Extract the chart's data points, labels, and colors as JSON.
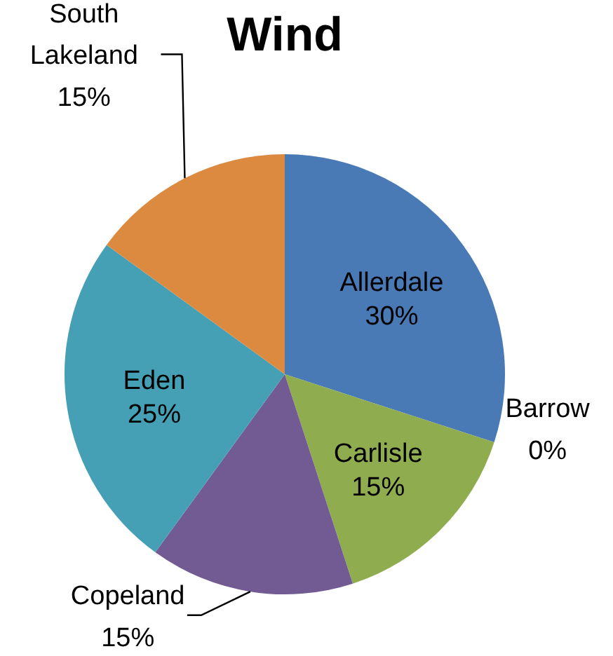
{
  "chart_data": {
    "type": "pie",
    "title": "Wind",
    "categories": [
      "Allerdale",
      "Barrow",
      "Carlisle",
      "Copeland",
      "Eden",
      "South Lakeland"
    ],
    "values": [
      30,
      0,
      15,
      15,
      25,
      15
    ],
    "value_labels": [
      "30%",
      "0%",
      "15%",
      "15%",
      "25%",
      "15%"
    ],
    "colors": [
      "#4a7ab5",
      "#b94a4a",
      "#8fac4f",
      "#725b93",
      "#45a0b6",
      "#dd8a41"
    ]
  }
}
